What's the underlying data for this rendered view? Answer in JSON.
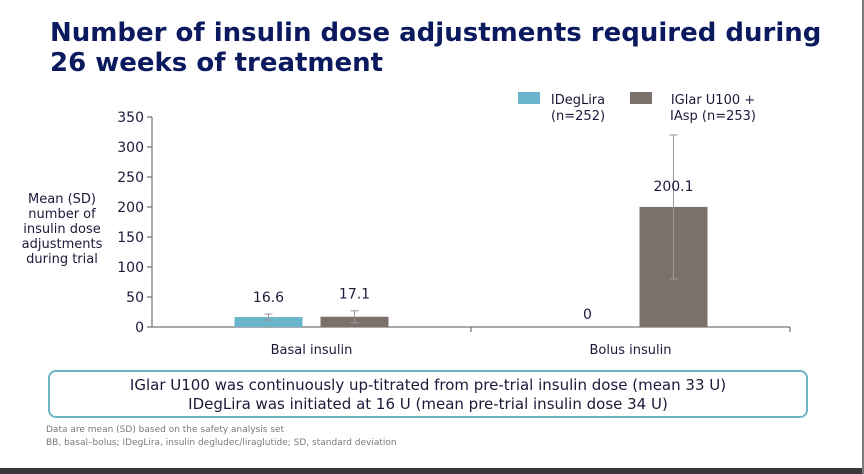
{
  "title_lines": [
    "Number of insulin dose adjustments required during",
    "26 weeks of treatment"
  ],
  "ylabel_lines": [
    "Mean (SD)",
    "number of",
    "insulin dose",
    "adjustments",
    "during trial"
  ],
  "colors": {
    "series1": "#6ab5cc",
    "series2": "#7c716a",
    "title": "#0b1a5e",
    "callout_border": "#6bb5c6"
  },
  "chart_data": {
    "type": "bar",
    "categories": [
      "Basal insulin",
      "Bolus insulin"
    ],
    "series": [
      {
        "name": "IDegLira (n=252)",
        "legend_lines": [
          "IDegLira",
          "(n=252)"
        ],
        "values": [
          16.6,
          0
        ],
        "labels": [
          "16.6",
          "0"
        ],
        "sd": [
          5,
          0
        ]
      },
      {
        "name": "IGlar U100 + IAsp (n=253)",
        "legend_lines": [
          "IGlar U100 +",
          "IAsp (n=253)"
        ],
        "values": [
          17.1,
          200.1
        ],
        "labels": [
          "17.1",
          "200.1"
        ],
        "sd": [
          10,
          120
        ]
      }
    ],
    "ylim": [
      0,
      350
    ],
    "yticks": [
      0,
      50,
      100,
      150,
      200,
      250,
      300,
      350
    ],
    "ylabel": "Mean (SD) number of insulin dose adjustments during trial",
    "xlabel": ""
  },
  "callout_lines": [
    "IGlar U100 was continuously up-titrated from pre-trial insulin dose (mean 33 U)",
    "IDegLira was initiated at 16 U (mean pre-trial insulin dose 34 U)"
  ],
  "footnotes": [
    "Data are mean (SD) based on the safety analysis set",
    "BB, basal–bolus; IDegLira, insulin degludec/liraglutide; SD, standard deviation"
  ]
}
